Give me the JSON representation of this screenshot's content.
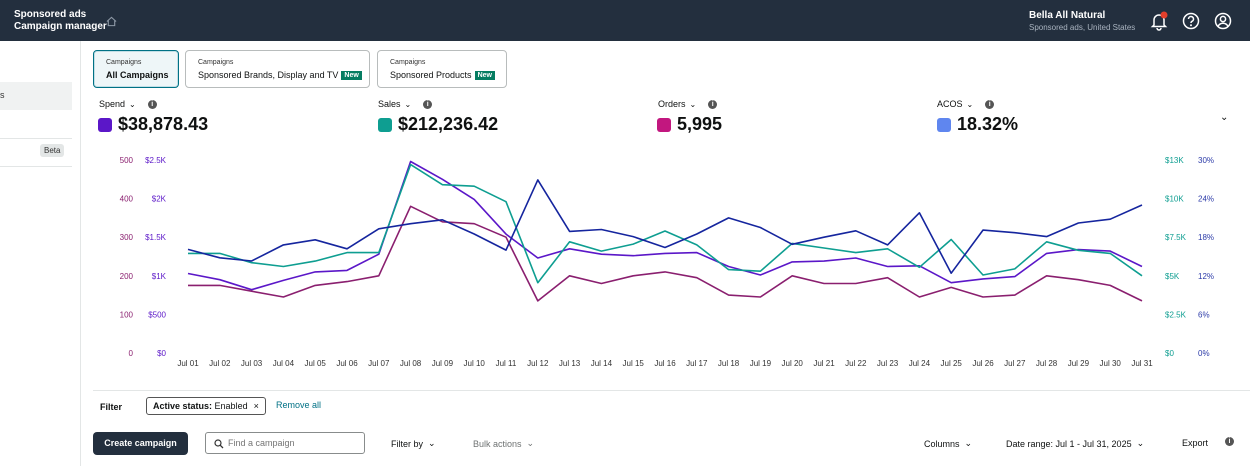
{
  "header": {
    "brand_line1": "Sponsored ads",
    "brand_line2": "Campaign manager",
    "account_name": "Bella All Natural",
    "account_sub": "Sponsored ads, United States",
    "icons": [
      "home-icon",
      "bell-icon",
      "help-icon",
      "user-icon"
    ],
    "notification_dot_color": "#e43f2b"
  },
  "sidebar": {
    "beta_label": "Beta",
    "selected_partial_label": "s"
  },
  "tabs": [
    {
      "label_small": "Campaigns",
      "label": "All Campaigns",
      "active": true,
      "new": ""
    },
    {
      "label_small": "Campaigns",
      "label": "Sponsored Brands, Display and TV",
      "active": false,
      "new": "New"
    },
    {
      "label_small": "Campaigns",
      "label": "Sponsored Products",
      "active": false,
      "new": "New"
    }
  ],
  "metrics": [
    {
      "label": "Spend",
      "value": "$38,878.43",
      "color": "#5b17c8"
    },
    {
      "label": "Sales",
      "value": "$212,236.42",
      "color": "#0e9e91"
    },
    {
      "label": "Orders",
      "value": "5,995",
      "color": "#c2177f"
    },
    {
      "label": "ACOS",
      "value": "18.32%",
      "color": "#5f86ef"
    }
  ],
  "chart_data": {
    "type": "line",
    "x": [
      "Jul 01",
      "Jul 02",
      "Jul 03",
      "Jul 04",
      "Jul 05",
      "Jul 06",
      "Jul 07",
      "Jul 08",
      "Jul 09",
      "Jul 10",
      "Jul 11",
      "Jul 12",
      "Jul 13",
      "Jul 14",
      "Jul 15",
      "Jul 16",
      "Jul 17",
      "Jul 18",
      "Jul 19",
      "Jul 20",
      "Jul 21",
      "Jul 22",
      "Jul 23",
      "Jul 24",
      "Jul 25",
      "Jul 26",
      "Jul 27",
      "Jul 28",
      "Jul 29",
      "Jul 30",
      "Jul 31"
    ],
    "axes": {
      "left_outer": {
        "ticks": [
          "0",
          "100",
          "200",
          "300",
          "400",
          "500"
        ],
        "color": "#8a1f6f",
        "range": [
          0,
          500
        ]
      },
      "left_inner": {
        "ticks": [
          "$0",
          "$500",
          "$1K",
          "$1.5K",
          "$2K",
          "$2.5K"
        ],
        "color": "#5b17c8",
        "range": [
          0,
          2500
        ]
      },
      "right_inner": {
        "ticks": [
          "$0",
          "$2.5K",
          "$5K",
          "$7.5K",
          "$10K",
          "$13K"
        ],
        "color": "#0e9e91",
        "range": [
          0,
          12500
        ]
      },
      "right_outer": {
        "ticks": [
          "0%",
          "6%",
          "12%",
          "18%",
          "24%",
          "30%"
        ],
        "color": "#2b3aa8",
        "range": [
          0,
          30
        ]
      }
    },
    "grid": false,
    "series": [
      {
        "name": "Spend",
        "axis": "left_inner",
        "color": "#5b17c8",
        "values": [
          1030,
          950,
          820,
          940,
          1050,
          1070,
          1280,
          2480,
          2250,
          1990,
          1540,
          1230,
          1350,
          1280,
          1260,
          1290,
          1300,
          1120,
          1010,
          1180,
          1190,
          1230,
          1120,
          1130,
          910,
          960,
          990,
          1290,
          1340,
          1320,
          1120
        ]
      },
      {
        "name": "Sales",
        "axis": "right_inner",
        "color": "#0e9e91",
        "values": [
          6450,
          6450,
          5850,
          5600,
          5950,
          6500,
          6500,
          12200,
          10900,
          10800,
          9800,
          4550,
          7200,
          6600,
          7050,
          7900,
          7000,
          5400,
          5300,
          7100,
          6800,
          6500,
          6750,
          5550,
          7350,
          5050,
          5450,
          7200,
          6650,
          6450,
          5000
        ]
      },
      {
        "name": "Orders",
        "axis": "left_outer",
        "color": "#8a1f6f",
        "values": [
          175,
          175,
          160,
          145,
          175,
          185,
          200,
          380,
          340,
          335,
          300,
          135,
          200,
          180,
          200,
          210,
          195,
          150,
          145,
          200,
          180,
          180,
          195,
          145,
          170,
          145,
          150,
          200,
          190,
          175,
          135
        ]
      },
      {
        "name": "ACOS",
        "axis": "right_outer",
        "color": "#15259e",
        "values": [
          16.1,
          14.8,
          14.3,
          16.8,
          17.6,
          16.2,
          19.3,
          20.1,
          20.7,
          18.5,
          16.0,
          26.9,
          18.9,
          19.2,
          18.1,
          16.4,
          18.5,
          21.0,
          19.5,
          16.9,
          18.0,
          19.0,
          16.8,
          21.8,
          12.4,
          19.1,
          18.7,
          18.1,
          20.2,
          20.8,
          23.0
        ]
      }
    ]
  },
  "filter": {
    "label": "Filter",
    "chip_key": "Active status:",
    "chip_value": "Enabled",
    "chip_close": "×",
    "remove_all": "Remove all"
  },
  "toolbar": {
    "create_campaign": "Create campaign",
    "search_placeholder": "Find a campaign",
    "filter_by": "Filter by",
    "bulk_actions": "Bulk actions",
    "columns": "Columns",
    "date_range": "Date range: Jul 1 - Jul 31, 2025",
    "export": "Export"
  }
}
